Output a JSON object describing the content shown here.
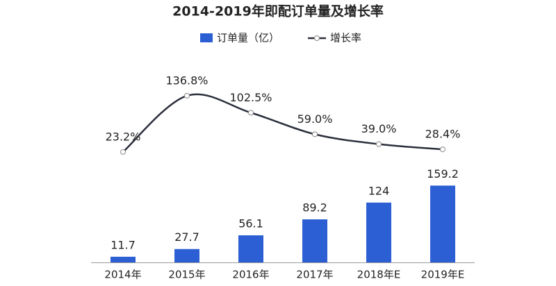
{
  "chart_data": {
    "type": "bar",
    "title": "2014-2019年即配订单量及增长率",
    "categories": [
      "2014年",
      "2015年",
      "2016年",
      "2017年",
      "2018年E",
      "2019年E"
    ],
    "series": [
      {
        "name": "订单量（亿）",
        "type": "bar",
        "color": "#2b5fd3",
        "values": [
          11.7,
          27.7,
          56.1,
          89.2,
          124,
          159.2
        ]
      },
      {
        "name": "增长率",
        "type": "line",
        "axis": "y2",
        "color": "#2b2f3a",
        "values": [
          23.2,
          136.8,
          102.5,
          59.0,
          39.0,
          28.4
        ],
        "value_labels": [
          "23.2%",
          "136.8%",
          "102.5%",
          "59.0%",
          "39.0%",
          "28.4%"
        ]
      }
    ],
    "ylim": [
      0,
      400
    ],
    "y2lim": [
      -200,
      190
    ]
  }
}
